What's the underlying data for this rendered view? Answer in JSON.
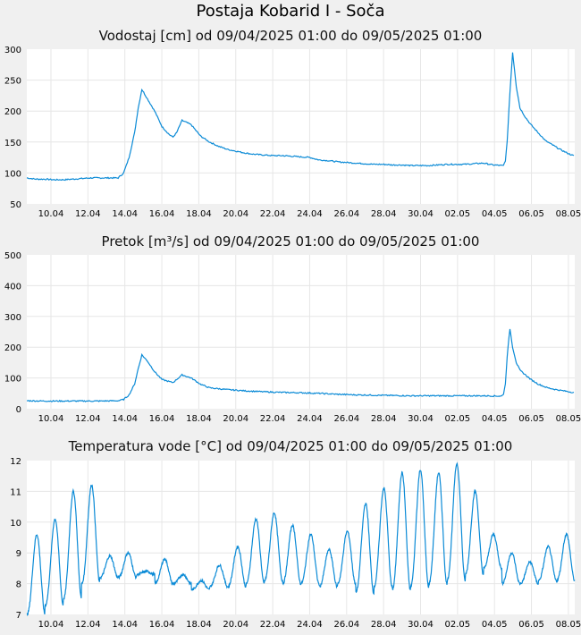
{
  "page_title": "Postaja Kobarid I - Soča",
  "colors": {
    "line": "#0a8ad6",
    "grid": "#e6e6e6",
    "plot_bg": "#ffffff",
    "page_bg": "#f0f0f0"
  },
  "chart_data": [
    {
      "type": "line",
      "title": "Vodostaj [cm] od 09/04/2025 01:00 do 09/05/2025 01:00",
      "xlabel": "",
      "ylabel": "",
      "ylim": [
        50,
        300
      ],
      "yticks": [
        "50",
        "100",
        "150",
        "200",
        "250",
        "300"
      ],
      "xticks": [
        "10.04",
        "12.04",
        "14.04",
        "16.04",
        "18.04",
        "20.04",
        "22.04",
        "24.04",
        "26.04",
        "28.04",
        "30.04",
        "02.05",
        "04.05",
        "06.05",
        "08.05"
      ],
      "grid": true,
      "series": [
        {
          "x_days": [
            0.0,
            0.5,
            1.0,
            1.5,
            2.0,
            2.5,
            3.0,
            3.5,
            4.0,
            4.5,
            5.0,
            5.3,
            5.6,
            5.9,
            6.1,
            6.3,
            6.6,
            7.0,
            7.4,
            7.8,
            8.0,
            8.2,
            8.5,
            9.0,
            9.5,
            10.0,
            10.5,
            11.0,
            11.5,
            12.0,
            12.5,
            13.0,
            13.5,
            14.0,
            14.5,
            15.0,
            15.5,
            16.0,
            16.5,
            17.0,
            17.5,
            18.0,
            18.5,
            19.0,
            19.5,
            20.0,
            20.5,
            21.0,
            21.5,
            22.0,
            22.5,
            23.0,
            23.5,
            24.0,
            24.5,
            25.0,
            25.5,
            26.0,
            26.1,
            26.2,
            26.3,
            26.45,
            26.6,
            26.8,
            27.0,
            27.3,
            27.6,
            28.0,
            28.4,
            28.8,
            29.2,
            29.6,
            30.0
          ],
          "values": [
            92,
            90,
            90,
            89,
            89,
            90,
            91,
            92,
            92,
            92,
            92,
            100,
            125,
            165,
            205,
            235,
            220,
            200,
            175,
            162,
            158,
            165,
            185,
            178,
            160,
            150,
            143,
            138,
            135,
            132,
            130,
            129,
            128,
            128,
            127,
            126,
            125,
            121,
            120,
            118,
            117,
            116,
            115,
            114,
            114,
            113,
            113,
            112,
            112,
            112,
            113,
            114,
            114,
            114,
            115,
            116,
            113,
            112,
            112,
            120,
            150,
            230,
            295,
            240,
            205,
            190,
            178,
            165,
            152,
            145,
            138,
            132,
            127
          ]
        }
      ]
    },
    {
      "type": "line",
      "title": "Pretok [m³/s] od 09/04/2025 01:00 do 09/05/2025 01:00",
      "xlabel": "",
      "ylabel": "",
      "ylim": [
        0,
        500
      ],
      "yticks": [
        "0",
        "100",
        "200",
        "300",
        "400",
        "500"
      ],
      "xticks": [
        "10.04",
        "12.04",
        "14.04",
        "16.04",
        "18.04",
        "20.04",
        "22.04",
        "24.04",
        "26.04",
        "28.04",
        "30.04",
        "02.05",
        "04.05",
        "06.05",
        "08.05"
      ],
      "grid": true,
      "series": [
        {
          "x_days": [
            0.0,
            1.0,
            2.0,
            3.0,
            4.0,
            5.0,
            5.3,
            5.6,
            5.9,
            6.1,
            6.3,
            6.6,
            7.0,
            7.4,
            7.8,
            8.0,
            8.2,
            8.5,
            9.0,
            9.5,
            10.0,
            11.0,
            12.0,
            13.0,
            14.0,
            15.0,
            16.0,
            17.0,
            18.0,
            19.0,
            20.0,
            21.0,
            22.0,
            23.0,
            24.0,
            25.0,
            26.0,
            26.1,
            26.2,
            26.3,
            26.45,
            26.6,
            26.8,
            27.0,
            27.3,
            27.6,
            28.0,
            28.5,
            29.0,
            29.5,
            30.0
          ],
          "values": [
            26,
            25,
            25,
            25,
            25,
            26,
            30,
            45,
            80,
            130,
            175,
            155,
            120,
            95,
            88,
            85,
            95,
            110,
            100,
            80,
            68,
            62,
            58,
            55,
            53,
            52,
            50,
            47,
            45,
            44,
            43,
            42,
            42,
            42,
            42,
            42,
            41,
            48,
            80,
            170,
            260,
            200,
            150,
            125,
            110,
            95,
            80,
            68,
            62,
            57,
            52
          ]
        }
      ]
    },
    {
      "type": "line",
      "title": "Temperatura vode [°C] od 09/04/2025 01:00 do 09/05/2025 01:00",
      "xlabel": "",
      "ylabel": "",
      "ylim": [
        7,
        12
      ],
      "yticks": [
        "7",
        "8",
        "9",
        "10",
        "11",
        "12"
      ],
      "xticks": [
        "10.04",
        "12.04",
        "14.04",
        "16.04",
        "18.04",
        "20.04",
        "22.04",
        "24.04",
        "26.04",
        "28.04",
        "30.04",
        "02.05",
        "04.05",
        "06.05",
        "08.05"
      ],
      "grid": true,
      "daily_min": [
        7.0,
        7.3,
        7.5,
        8.0,
        8.2,
        8.2,
        8.3,
        8.0,
        8.0,
        7.8,
        7.9,
        7.9,
        8.0,
        8.1,
        8.0,
        8.0,
        7.9,
        8.0,
        7.7,
        7.9,
        7.8,
        7.9,
        8.0,
        8.1,
        8.3,
        8.5,
        8.0,
        8.0,
        8.1,
        8.1
      ],
      "daily_max": [
        9.6,
        10.1,
        11.0,
        11.2,
        8.9,
        9.0,
        8.4,
        8.8,
        8.3,
        8.1,
        8.6,
        9.2,
        10.1,
        10.3,
        9.9,
        9.6,
        9.1,
        9.7,
        10.6,
        11.1,
        11.6,
        11.7,
        11.6,
        11.9,
        11.0,
        9.6,
        9.0,
        8.7,
        9.2,
        9.6
      ]
    }
  ]
}
